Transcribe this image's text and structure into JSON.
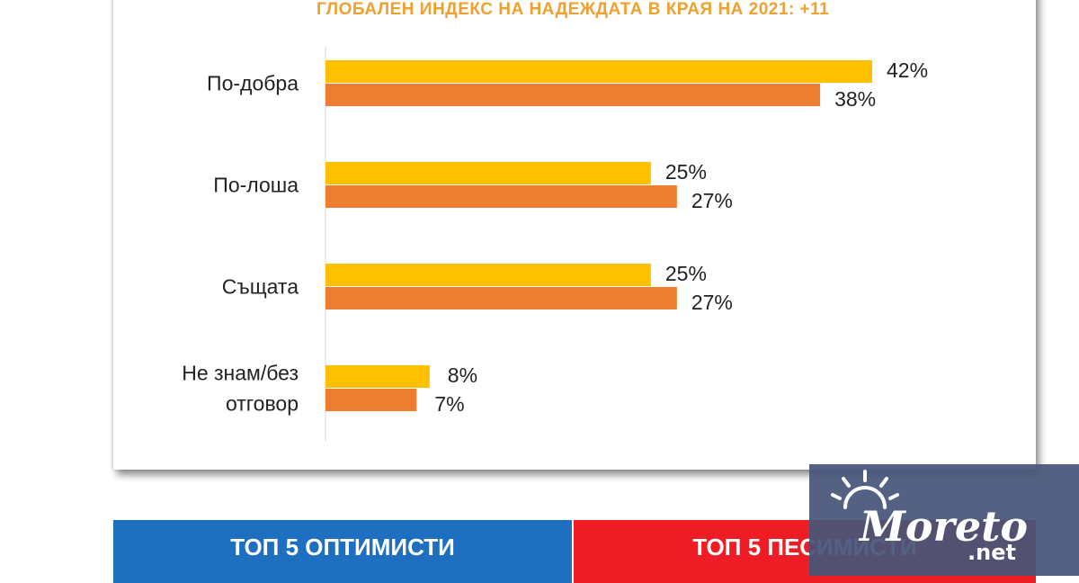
{
  "chart_data": {
    "type": "bar",
    "orientation": "horizontal",
    "title": "ГЛОБАЛЕН ИНДЕКС НА НАДЕЖДАТА В КРАЯ НА 2021: +11",
    "categories": [
      [
        "По-добра"
      ],
      [
        "По-лоша"
      ],
      [
        "Същата"
      ],
      [
        "Не знам/без",
        "отговор"
      ]
    ],
    "series": [
      {
        "color": "#ffc000",
        "values": [
          42,
          25,
          25,
          8
        ]
      },
      {
        "color": "#ed7d31",
        "values": [
          38,
          27,
          27,
          7
        ]
      }
    ],
    "value_suffix": "%",
    "xlim": [
      0,
      42
    ],
    "grid": false
  },
  "panels": {
    "optimists": {
      "title": "ТОП 5 ОПТИМИСТИ",
      "color": "#1f6fc0"
    },
    "pessimists": {
      "title": "ТОП 5 ПЕСИМИСТИ",
      "color": "#ee1c25"
    }
  },
  "logo": {
    "text": "Moreto",
    "suffix": ".net"
  }
}
